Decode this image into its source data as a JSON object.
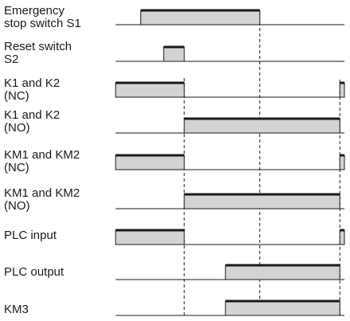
{
  "signals": [
    {
      "label": "Emergency\nstop switch S1",
      "pulses": [
        [
          0.11,
          0.63
        ]
      ]
    },
    {
      "label": "Reset switch\nS2",
      "pulses": [
        [
          0.21,
          0.3
        ]
      ]
    },
    {
      "label": "K1 and K2\n(NC)",
      "pulses": [
        [
          0.0,
          0.3
        ],
        [
          0.98,
          1.0
        ]
      ]
    },
    {
      "label": "K1 and K2\n(NO)",
      "pulses": [
        [
          0.3,
          0.98
        ]
      ]
    },
    {
      "label": "KM1 and KM2\n(NC)",
      "pulses": [
        [
          0.0,
          0.3
        ],
        [
          0.98,
          1.0
        ]
      ]
    },
    {
      "label": "KM1 and KM2\n(NO)",
      "pulses": [
        [
          0.3,
          0.98
        ]
      ]
    },
    {
      "label": "PLC input",
      "pulses": [
        [
          0.0,
          0.3
        ],
        [
          0.98,
          1.0
        ]
      ]
    },
    {
      "label": "PLC output",
      "pulses": [
        [
          0.48,
          0.98
        ]
      ]
    },
    {
      "label": "KM3",
      "pulses": [
        [
          0.48,
          0.98
        ]
      ]
    }
  ],
  "colors": {
    "pulse_fill": "#d3d3d3",
    "line": "#1a1a1a"
  }
}
